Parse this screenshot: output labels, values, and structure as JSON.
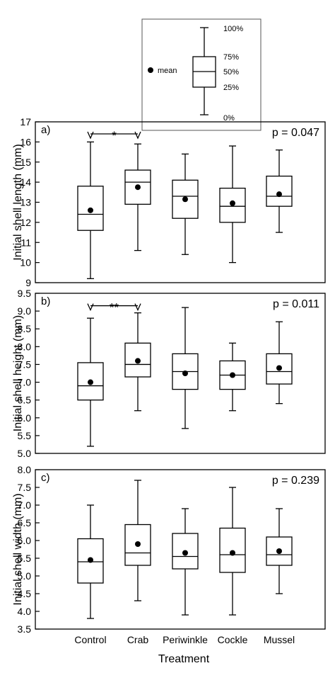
{
  "legend": {
    "mean_label": "mean",
    "pct_100": "100%",
    "pct_75": "75%",
    "pct_50": "50%",
    "pct_25": "25%",
    "pct_0": "0%"
  },
  "xlabel": "Treatment",
  "chart_data": [
    {
      "type": "box",
      "panel_label": "a)",
      "ylabel": "Initial shell length (mm)",
      "p_value": "p = 0.047",
      "ylim": [
        9,
        17
      ],
      "yticks": [
        "9",
        "10",
        "11",
        "12",
        "13",
        "14",
        "15",
        "16",
        "17"
      ],
      "categories": [
        "Control",
        "Crab",
        "Periwinkle",
        "Cockle",
        "Mussel"
      ],
      "boxes": [
        {
          "min": 9.2,
          "q1": 11.6,
          "median": 12.4,
          "q3": 13.8,
          "max": 16.0,
          "mean": 12.6
        },
        {
          "min": 10.6,
          "q1": 12.9,
          "median": 14.0,
          "q3": 14.6,
          "max": 15.9,
          "mean": 13.75
        },
        {
          "min": 10.4,
          "q1": 12.2,
          "median": 13.3,
          "q3": 14.1,
          "max": 15.4,
          "mean": 13.15
        },
        {
          "min": 10.0,
          "q1": 12.0,
          "median": 12.8,
          "q3": 13.7,
          "max": 15.8,
          "mean": 12.95
        },
        {
          "min": 11.5,
          "q1": 12.8,
          "median": 13.3,
          "q3": 14.3,
          "max": 15.6,
          "mean": 13.4
        }
      ],
      "significance": {
        "from": "Control",
        "to": "Crab",
        "label": "*",
        "y": 16.4
      }
    },
    {
      "type": "box",
      "panel_label": "b)",
      "ylabel": "Initial shell height (mm)",
      "p_value": "p = 0.011",
      "ylim": [
        5,
        9.5
      ],
      "yticks": [
        "5.0",
        "5.5",
        "6.0",
        "6.5",
        "7.0",
        "7.5",
        "8.0",
        "8.5",
        "9.0",
        "9.5"
      ],
      "categories": [
        "Control",
        "Crab",
        "Periwinkle",
        "Cockle",
        "Mussel"
      ],
      "boxes": [
        {
          "min": 5.2,
          "q1": 6.5,
          "median": 6.9,
          "q3": 7.55,
          "max": 8.8,
          "mean": 7.0
        },
        {
          "min": 6.2,
          "q1": 7.15,
          "median": 7.5,
          "q3": 8.1,
          "max": 8.95,
          "mean": 7.6
        },
        {
          "min": 5.7,
          "q1": 6.8,
          "median": 7.3,
          "q3": 7.8,
          "max": 9.1,
          "mean": 7.25
        },
        {
          "min": 6.2,
          "q1": 6.8,
          "median": 7.2,
          "q3": 7.6,
          "max": 8.1,
          "mean": 7.2
        },
        {
          "min": 6.4,
          "q1": 6.95,
          "median": 7.3,
          "q3": 7.8,
          "max": 8.7,
          "mean": 7.4
        }
      ],
      "significance": {
        "from": "Control",
        "to": "Crab",
        "label": "**",
        "y": 9.15
      }
    },
    {
      "type": "box",
      "panel_label": "c)",
      "ylabel": "Initial shell width (mm)",
      "p_value": "p = 0.239",
      "ylim": [
        3.5,
        8.0
      ],
      "yticks": [
        "3.5",
        "4.0",
        "4.5",
        "5.0",
        "5.5",
        "6.0",
        "6.5",
        "7.0",
        "7.5",
        "8.0"
      ],
      "categories": [
        "Control",
        "Crab",
        "Periwinkle",
        "Cockle",
        "Mussel"
      ],
      "boxes": [
        {
          "min": 3.8,
          "q1": 4.8,
          "median": 5.4,
          "q3": 6.05,
          "max": 7.0,
          "mean": 5.45
        },
        {
          "min": 4.3,
          "q1": 5.3,
          "median": 5.65,
          "q3": 6.45,
          "max": 7.7,
          "mean": 5.9
        },
        {
          "min": 3.9,
          "q1": 5.2,
          "median": 5.55,
          "q3": 6.2,
          "max": 6.9,
          "mean": 5.65
        },
        {
          "min": 3.9,
          "q1": 5.1,
          "median": 5.6,
          "q3": 6.35,
          "max": 7.5,
          "mean": 5.65
        },
        {
          "min": 4.5,
          "q1": 5.3,
          "median": 5.6,
          "q3": 6.1,
          "max": 6.9,
          "mean": 5.7
        }
      ],
      "significance": null
    }
  ]
}
